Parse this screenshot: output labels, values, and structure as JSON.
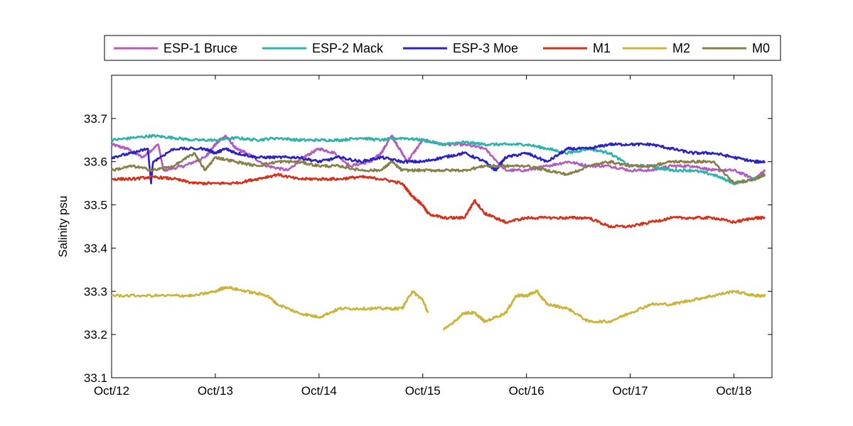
{
  "chart_data": {
    "type": "line",
    "title": "",
    "xlabel": "",
    "ylabel": "Salinity psu",
    "xlim": [
      "2012-10-12",
      "2012-10-18 10:00"
    ],
    "ylim": [
      33.1,
      33.8
    ],
    "yticks": [
      33.1,
      33.2,
      33.3,
      33.4,
      33.5,
      33.6,
      33.7
    ],
    "xtick_labels": [
      "Oct/12",
      "Oct/13",
      "Oct/14",
      "Oct/15",
      "Oct/16",
      "Oct/17",
      "Oct/18"
    ],
    "grid": false,
    "legend_position": "top, outside plot, horizontal",
    "x_units": "days after Oct/12 00:00",
    "series": [
      {
        "name": "ESP-1 Bruce",
        "color": "#b55bc0",
        "x": [
          0,
          0.15,
          0.3,
          0.45,
          0.5,
          0.7,
          0.9,
          1.0,
          1.1,
          1.2,
          1.3,
          1.5,
          1.7,
          1.85,
          2.0,
          2.15,
          2.3,
          2.5,
          2.6,
          2.7,
          2.75,
          2.85,
          3.0,
          3.2,
          3.4,
          3.6,
          3.8,
          4.0,
          4.2,
          4.4,
          4.6,
          4.8,
          5.0,
          5.2,
          5.4,
          5.6,
          5.8,
          6.0,
          6.2,
          6.3
        ],
        "y": [
          33.64,
          33.63,
          33.61,
          33.64,
          33.58,
          33.59,
          33.61,
          33.64,
          33.66,
          33.63,
          33.62,
          33.59,
          33.58,
          33.61,
          33.63,
          33.62,
          33.59,
          33.6,
          33.62,
          33.66,
          33.64,
          33.6,
          33.65,
          33.64,
          33.64,
          33.63,
          33.58,
          33.58,
          33.59,
          33.6,
          33.59,
          33.59,
          33.58,
          33.58,
          33.59,
          33.59,
          33.58,
          33.58,
          33.56,
          33.58
        ]
      },
      {
        "name": "ESP-2 Mack",
        "color": "#2db3ad",
        "x": [
          0,
          0.2,
          0.4,
          0.6,
          0.8,
          1.0,
          1.2,
          1.4,
          1.6,
          1.8,
          2.0,
          2.2,
          2.4,
          2.6,
          2.8,
          3.0,
          3.2,
          3.4,
          3.6,
          3.8,
          4.0,
          4.2,
          4.4,
          4.6,
          4.8,
          5.0,
          5.2,
          5.4,
          5.6,
          5.8,
          6.0,
          6.2,
          6.3
        ],
        "y": [
          33.65,
          33.655,
          33.66,
          33.655,
          33.65,
          33.65,
          33.655,
          33.65,
          33.655,
          33.65,
          33.65,
          33.65,
          33.655,
          33.65,
          33.655,
          33.65,
          33.64,
          33.645,
          33.64,
          33.64,
          33.64,
          33.63,
          33.62,
          33.63,
          33.62,
          33.59,
          33.59,
          33.58,
          33.58,
          33.57,
          33.55,
          33.56,
          33.57
        ]
      },
      {
        "name": "ESP-3 Moe",
        "color": "#2b22c2",
        "x": [
          0,
          0.2,
          0.35,
          0.38,
          0.4,
          0.6,
          0.9,
          1.0,
          1.1,
          1.2,
          1.4,
          1.6,
          1.8,
          2.0,
          2.2,
          2.4,
          2.6,
          2.8,
          3.0,
          3.2,
          3.4,
          3.6,
          3.7,
          3.8,
          4.0,
          4.2,
          4.4,
          4.6,
          4.8,
          5.0,
          5.2,
          5.4,
          5.6,
          5.8,
          6.0,
          6.2,
          6.3
        ],
        "y": [
          33.61,
          33.62,
          33.63,
          33.55,
          33.6,
          33.63,
          33.63,
          33.62,
          33.63,
          33.62,
          33.61,
          33.61,
          33.61,
          33.6,
          33.61,
          33.6,
          33.61,
          33.6,
          33.6,
          33.61,
          33.62,
          33.6,
          33.58,
          33.61,
          33.62,
          33.6,
          33.63,
          33.63,
          33.64,
          33.64,
          33.64,
          33.63,
          33.62,
          33.62,
          33.61,
          33.6,
          33.6
        ]
      },
      {
        "name": "M1",
        "color": "#d5321c",
        "x": [
          0,
          0.2,
          0.4,
          0.6,
          0.8,
          1.0,
          1.2,
          1.4,
          1.6,
          1.8,
          2.0,
          2.2,
          2.4,
          2.6,
          2.8,
          2.9,
          3.0,
          3.05,
          3.2,
          3.4,
          3.5,
          3.6,
          3.7,
          3.8,
          4.0,
          4.2,
          4.4,
          4.6,
          4.8,
          5.0,
          5.2,
          5.4,
          5.6,
          5.8,
          6.0,
          6.2,
          6.3
        ],
        "y": [
          33.56,
          33.56,
          33.565,
          33.56,
          33.55,
          33.55,
          33.55,
          33.56,
          33.57,
          33.56,
          33.56,
          33.56,
          33.565,
          33.56,
          33.55,
          33.52,
          33.5,
          33.48,
          33.47,
          33.47,
          33.51,
          33.48,
          33.47,
          33.46,
          33.47,
          33.47,
          33.47,
          33.47,
          33.45,
          33.45,
          33.46,
          33.47,
          33.47,
          33.47,
          33.46,
          33.47,
          33.47
        ]
      },
      {
        "name": "M2",
        "color": "#ccb339",
        "x": [
          0,
          0.3,
          0.6,
          0.8,
          1.0,
          1.1,
          1.3,
          1.5,
          1.6,
          1.8,
          2.0,
          2.2,
          2.4,
          2.6,
          2.8,
          2.9,
          3.0,
          3.05,
          3.1,
          3.2,
          3.4,
          3.5,
          3.6,
          3.8,
          3.9,
          4.0,
          4.1,
          4.2,
          4.4,
          4.6,
          4.8,
          5.0,
          5.2,
          5.4,
          5.6,
          5.8,
          6.0,
          6.2,
          6.3
        ],
        "y": [
          33.29,
          33.29,
          33.29,
          33.29,
          33.3,
          33.31,
          33.3,
          33.29,
          33.27,
          33.25,
          33.24,
          33.26,
          33.26,
          33.26,
          33.26,
          33.3,
          33.28,
          33.25,
          null,
          33.21,
          33.25,
          33.25,
          33.23,
          33.25,
          33.29,
          33.29,
          33.3,
          33.27,
          33.26,
          33.23,
          33.23,
          33.25,
          33.27,
          33.27,
          33.28,
          33.29,
          33.3,
          33.29,
          33.29
        ]
      },
      {
        "name": "M0",
        "color": "#878149",
        "x": [
          0,
          0.2,
          0.4,
          0.6,
          0.8,
          0.9,
          1.0,
          1.2,
          1.4,
          1.6,
          1.8,
          2.0,
          2.2,
          2.4,
          2.6,
          2.7,
          2.8,
          3.0,
          3.2,
          3.4,
          3.6,
          3.8,
          4.0,
          4.2,
          4.4,
          4.6,
          4.8,
          5.0,
          5.2,
          5.4,
          5.6,
          5.8,
          6.0,
          6.2,
          6.3
        ],
        "y": [
          33.58,
          33.59,
          33.58,
          33.59,
          33.62,
          33.58,
          33.61,
          33.6,
          33.59,
          33.6,
          33.6,
          33.59,
          33.59,
          33.58,
          33.58,
          33.6,
          33.58,
          33.58,
          33.58,
          33.58,
          33.59,
          33.59,
          33.59,
          33.58,
          33.57,
          33.59,
          33.6,
          33.59,
          33.59,
          33.6,
          33.6,
          33.6,
          33.55,
          33.56,
          33.57
        ]
      }
    ]
  }
}
